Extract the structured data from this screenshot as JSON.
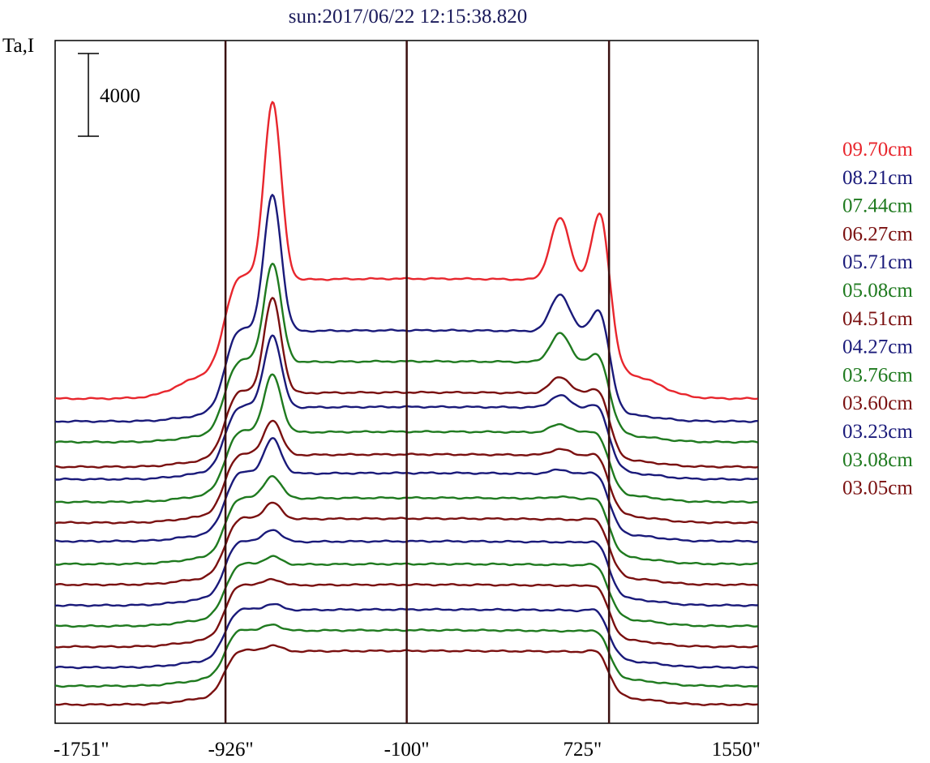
{
  "chart_data": {
    "type": "line",
    "title": "sun:2017/06/22 12:15:38.820",
    "ylabel": "Ta,I",
    "xlabel": "",
    "xlim": [
      -1751,
      1550
    ],
    "x_ticks": [
      -1751,
      -926,
      -100,
      725,
      1550
    ],
    "x_tick_labels": [
      "-1751\"",
      "-926\"",
      "-100\"",
      "725\"",
      "1550\""
    ],
    "reference_lines_x": [
      -951,
      -100,
      850
    ],
    "scale_bar": {
      "value": 4000,
      "label": "4000"
    },
    "legend_placement": "right",
    "colors": {
      "red": "#e8262d",
      "blue": "#1a1a7a",
      "green": "#1f7a1f",
      "maroon": "#7a1010",
      "title": "#1a1a5a",
      "axis": "#000000",
      "vline": "#3a1010"
    },
    "series": [
      {
        "name": "09.70cm",
        "color": "#e8262d",
        "baseline": 14800,
        "peak_left": 8600,
        "shoulder": 5800,
        "peak_right": 3000,
        "peak_right2": 3400,
        "limb": 1700
      },
      {
        "name": "08.21cm",
        "color": "#1a1a7a",
        "baseline": 13700,
        "peak_left": 6600,
        "shoulder": 4400,
        "peak_right": 1800,
        "peak_right2": 1200,
        "limb": 1300
      },
      {
        "name": "07.44cm",
        "color": "#1f7a1f",
        "baseline": 12700,
        "peak_left": 4800,
        "shoulder": 3900,
        "peak_right": 1400,
        "peak_right2": 400,
        "limb": 1200
      },
      {
        "name": "06.27cm",
        "color": "#7a1010",
        "baseline": 11500,
        "peak_left": 4600,
        "shoulder": 3600,
        "peak_right": 800,
        "peak_right2": 200,
        "limb": 1100
      },
      {
        "name": "05.71cm",
        "color": "#1a1a7a",
        "baseline": 10900,
        "peak_left": 3500,
        "shoulder": 3500,
        "peak_right": 600,
        "peak_right2": 100,
        "limb": 1000
      },
      {
        "name": "05.08cm",
        "color": "#1f7a1f",
        "baseline": 9800,
        "peak_left": 2800,
        "shoulder": 3400,
        "peak_right": 400,
        "peak_right2": 0,
        "limb": 900
      },
      {
        "name": "04.51cm",
        "color": "#7a1010",
        "baseline": 8800,
        "peak_left": 1700,
        "shoulder": 3300,
        "peak_right": 300,
        "peak_right2": 0,
        "limb": 900
      },
      {
        "name": "04.27cm",
        "color": "#1a1a7a",
        "baseline": 7900,
        "peak_left": 1700,
        "shoulder": 3300,
        "peak_right": 200,
        "peak_right2": 0,
        "limb": 900
      },
      {
        "name": "03.76cm",
        "color": "#1f7a1f",
        "baseline": 6800,
        "peak_left": 1100,
        "shoulder": 3200,
        "peak_right": 100,
        "peak_right2": 0,
        "limb": 800
      },
      {
        "name": "03.60cm",
        "color": "#7a1010",
        "baseline": 5800,
        "peak_left": 800,
        "shoulder": 3200,
        "peak_right": 0,
        "peak_right2": 0,
        "limb": 800
      },
      {
        "name": "03.23cm",
        "color": "#1a1a7a",
        "baseline": 4800,
        "peak_left": 600,
        "shoulder": 3100,
        "peak_right": 0,
        "peak_right2": 0,
        "limb": 800
      },
      {
        "name": "03.08cm",
        "color": "#1f7a1f",
        "baseline": 3800,
        "peak_left": 400,
        "shoulder": 3000,
        "peak_right": 0,
        "peak_right2": 0,
        "limb": 700
      },
      {
        "name": "03.05cm",
        "color": "#7a1010",
        "baseline": 2800,
        "peak_left": 300,
        "shoulder": 3000,
        "peak_right": 0,
        "peak_right2": 0,
        "limb": 700
      },
      {
        "color": "#1a1a7a",
        "baseline": 1800,
        "peak_left": 300,
        "shoulder": 2800,
        "peak_right": 0,
        "peak_right2": 0,
        "limb": 700
      },
      {
        "color": "#1f7a1f",
        "baseline": 900,
        "peak_left": 300,
        "shoulder": 2700,
        "peak_right": 0,
        "peak_right2": 0,
        "limb": 700
      },
      {
        "color": "#7a1010",
        "baseline": 0,
        "peak_left": 300,
        "shoulder": 2600,
        "peak_right": 0,
        "peak_right2": 0,
        "limb": 700
      }
    ]
  }
}
